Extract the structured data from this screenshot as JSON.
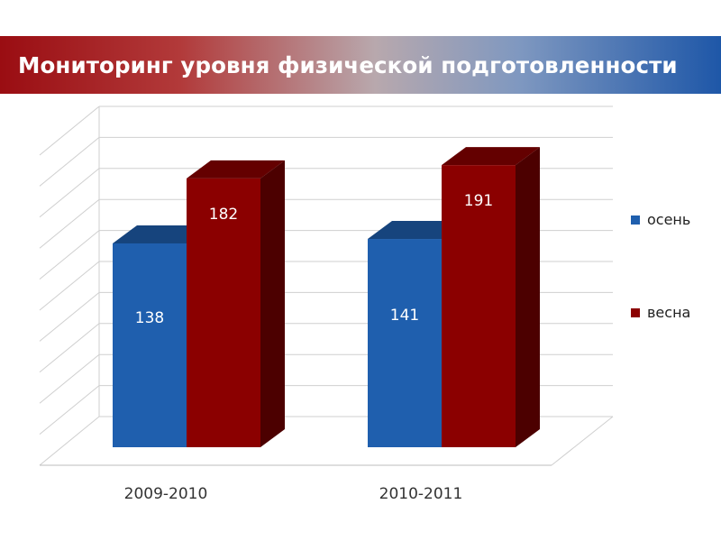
{
  "slide": {
    "title": "Мониторинг уровня физической подготовленности"
  },
  "chart_data": {
    "type": "bar",
    "style": "3d-clustered-column",
    "title": "",
    "xlabel": "",
    "ylabel": "",
    "categories": [
      "2009-2010",
      "2010-2011"
    ],
    "series": [
      {
        "name": "осень",
        "values": [
          138,
          141
        ],
        "color": "#1f5fae"
      },
      {
        "name": "весна",
        "values": [
          182,
          191
        ],
        "color": "#8b0000"
      }
    ],
    "ylim": [
      0,
      210
    ],
    "grid": true,
    "legend": "right",
    "axis_tick_labels_shown": false
  }
}
